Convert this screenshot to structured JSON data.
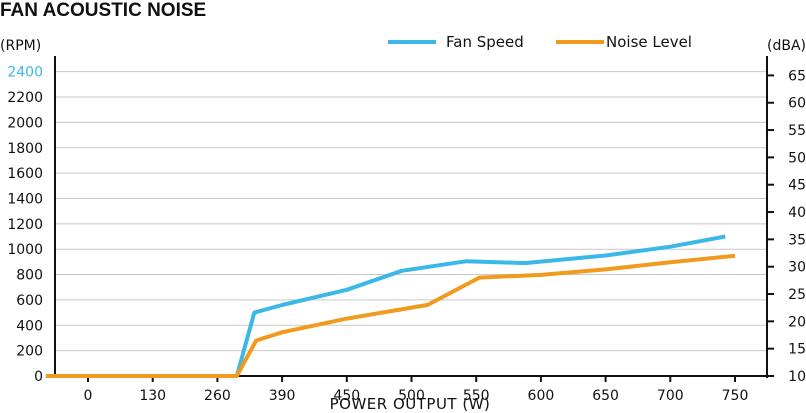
{
  "chart_data": {
    "type": "line",
    "title": "FAN ACOUSTIC NOISE",
    "xlabel": "POWER OUTPUT (W)",
    "y_left_unit": "(RPM)",
    "y_right_unit": "(dBA)",
    "categories": [
      "0",
      "130",
      "260",
      "390",
      "450",
      "500",
      "550",
      "600",
      "650",
      "700",
      "750"
    ],
    "y_left": {
      "ylim": [
        0,
        2500
      ],
      "ticks": [
        0,
        200,
        400,
        600,
        800,
        1000,
        1200,
        1400,
        1600,
        1800,
        2000,
        2200,
        2400
      ],
      "highlight_tick": 2400
    },
    "y_right": {
      "ylim": [
        10,
        68
      ],
      "ticks": [
        10,
        15,
        20,
        25,
        30,
        35,
        40,
        45,
        50,
        55,
        60,
        65
      ]
    },
    "grid": true,
    "legend_position": "top-right",
    "series": [
      {
        "name": "Fan Speed",
        "axis": "left",
        "color": "#3bb8e8",
        "points": [
          [
            -0.65,
            0
          ],
          [
            0,
            0
          ],
          [
            1,
            0
          ],
          [
            2,
            0
          ],
          [
            2.3,
            0
          ],
          [
            2.57,
            500
          ],
          [
            3,
            560
          ],
          [
            4,
            680
          ],
          [
            4.85,
            830
          ],
          [
            5.85,
            905
          ],
          [
            6.75,
            890
          ],
          [
            8,
            950
          ],
          [
            9,
            1020
          ],
          [
            9.85,
            1100
          ]
        ]
      },
      {
        "name": "Noise Level",
        "axis": "right",
        "color": "#f09a1e",
        "points": [
          [
            -0.65,
            10
          ],
          [
            0,
            10
          ],
          [
            1,
            10
          ],
          [
            2,
            10
          ],
          [
            2.3,
            10
          ],
          [
            2.6,
            16.5
          ],
          [
            3,
            18
          ],
          [
            4,
            20.5
          ],
          [
            5.25,
            23
          ],
          [
            6.05,
            28
          ],
          [
            7,
            28.5
          ],
          [
            8,
            29.5
          ],
          [
            9,
            30.8
          ],
          [
            10,
            32
          ]
        ]
      }
    ]
  }
}
